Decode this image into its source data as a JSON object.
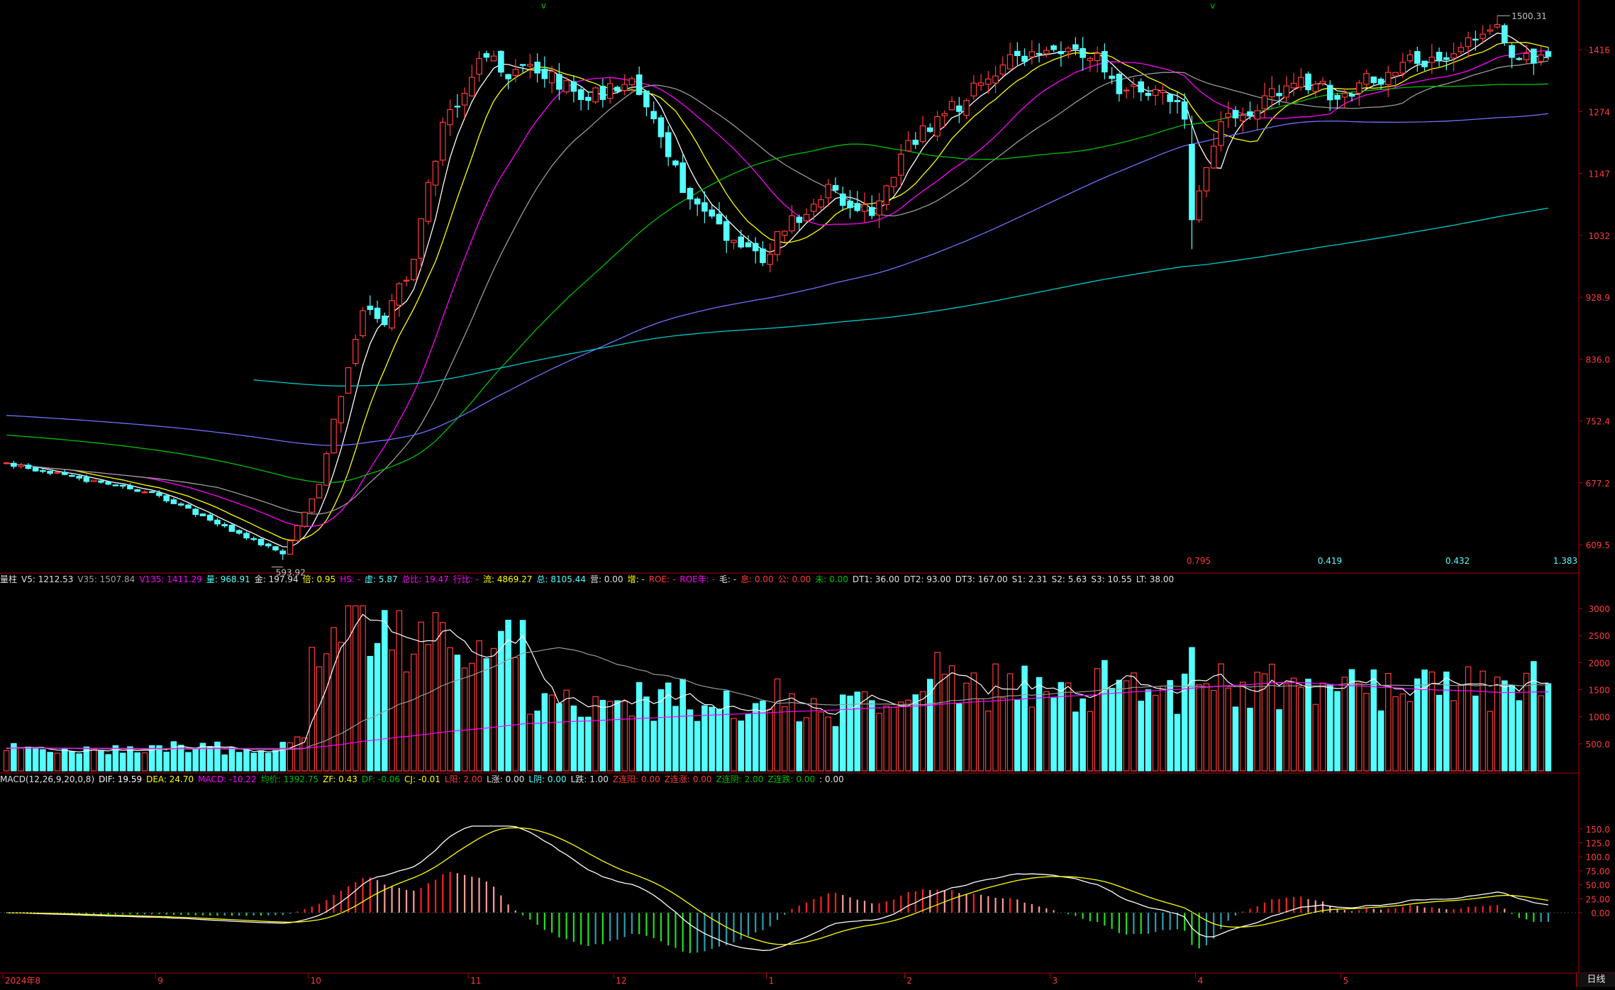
{
  "price_panel": {
    "y_ticks": [
      "1416",
      "1274",
      "1147",
      "1032",
      "928.9",
      "836.0",
      "752.4",
      "677.2",
      "609.5"
    ],
    "y_tick_values": [
      1416,
      1274,
      1147,
      1032,
      928.9,
      836.0,
      752.4,
      677.2,
      609.5
    ],
    "high_label": "1500.31",
    "low_label": "593.92",
    "bottom_values": [
      "0.795",
      "0.419",
      "0.432",
      "1.383"
    ],
    "colors": {
      "up": "#ff3b3b",
      "down": "#54ffff",
      "ma5": "#ffffff",
      "ma10": "#ffff00",
      "ma20": "#ff00ff",
      "ma30": "#9a9a9a",
      "ma60": "#00c000",
      "ma120": "#7070ff",
      "ma250": "#00c8c8"
    }
  },
  "volume_panel": {
    "header": [
      {
        "t": "量柱",
        "c": "#e0e0e0"
      },
      {
        "t": "V5: 1212.53",
        "c": "#e0e0e0"
      },
      {
        "t": "V35: 1507.84",
        "c": "#a0a0a0"
      },
      {
        "t": "V135: 1411.29",
        "c": "#ff00ff"
      },
      {
        "t": "量: 968.91",
        "c": "#54ffff"
      },
      {
        "t": "金: 197.94",
        "c": "#e0e0e0"
      },
      {
        "t": "倍: 0.95",
        "c": "#ffff00"
      },
      {
        "t": "HS: -",
        "c": "#ff00ff"
      },
      {
        "t": "虚: 5.87",
        "c": "#54ffff"
      },
      {
        "t": "总比: 19.47",
        "c": "#ff00ff"
      },
      {
        "t": "行比: -",
        "c": "#ff00ff"
      },
      {
        "t": "流: 4869.27",
        "c": "#ffff00"
      },
      {
        "t": "总: 8105.44",
        "c": "#54ffff"
      },
      {
        "t": "营: 0.00",
        "c": "#e0e0e0"
      },
      {
        "t": "增: -",
        "c": "#ffff00"
      },
      {
        "t": "ROE: -",
        "c": "#ff3b3b"
      },
      {
        "t": "ROE年: -",
        "c": "#ff00ff"
      },
      {
        "t": "毛: -",
        "c": "#e0e0e0"
      },
      {
        "t": "息: 0.00",
        "c": "#ff3b3b"
      },
      {
        "t": "公: 0.00",
        "c": "#ff3b3b"
      },
      {
        "t": "未: 0.00",
        "c": "#00c000"
      },
      {
        "t": "DT1: 36.00",
        "c": "#e0e0e0"
      },
      {
        "t": "DT2: 93.00",
        "c": "#e0e0e0"
      },
      {
        "t": "DT3: 167.00",
        "c": "#e0e0e0"
      },
      {
        "t": "S1: 2.31",
        "c": "#e0e0e0"
      },
      {
        "t": "S2: 5.63",
        "c": "#e0e0e0"
      },
      {
        "t": "S3: 10.55",
        "c": "#e0e0e0"
      },
      {
        "t": "LT: 38.00",
        "c": "#e0e0e0"
      }
    ],
    "y_ticks": [
      "3000",
      "2500",
      "2000",
      "1500",
      "1000",
      "500.0"
    ],
    "y_tick_values": [
      3000,
      2500,
      2000,
      1500,
      1000,
      500
    ]
  },
  "macd_panel": {
    "header": [
      {
        "t": "MACD(12,26,9,20,0,8)",
        "c": "#e0e0e0"
      },
      {
        "t": "DIF: 19.59",
        "c": "#ffffff"
      },
      {
        "t": "DEA: 24.70",
        "c": "#ffff00"
      },
      {
        "t": "MACD: -10.22",
        "c": "#ff00ff"
      },
      {
        "t": "均价: 1392.75",
        "c": "#00c000"
      },
      {
        "t": "ZF: 0.43",
        "c": "#ffff00"
      },
      {
        "t": "DF: -0.06",
        "c": "#00c000"
      },
      {
        "t": "CJ: -0.01",
        "c": "#ffff00"
      },
      {
        "t": "L阳: 2.00",
        "c": "#ff3b3b"
      },
      {
        "t": "L涨: 0.00",
        "c": "#e0e0e0"
      },
      {
        "t": "L阴: 0.00",
        "c": "#54ffff"
      },
      {
        "t": "L跌: 1.00",
        "c": "#e0e0e0"
      },
      {
        "t": "Z连阳: 0.00",
        "c": "#ff3b3b"
      },
      {
        "t": "Z连涨: 0.00",
        "c": "#ff3b3b"
      },
      {
        "t": "Z连阴: 2.00",
        "c": "#00c000"
      },
      {
        "t": "Z连跌: 0.00",
        "c": "#00c000"
      },
      {
        "t": ": 0.00",
        "c": "#e0e0e0"
      }
    ],
    "y_ticks": [
      "150.0",
      "125.0",
      "100.0",
      "75.00",
      "50.00",
      "25.00",
      "0.00"
    ],
    "y_tick_values": [
      150,
      125,
      100,
      75,
      50,
      25,
      0
    ]
  },
  "time_axis": {
    "labels": [
      "2024年8",
      "9",
      "10",
      "11",
      "12",
      "1",
      "2",
      "3",
      "4",
      "5"
    ],
    "label_positions": [
      0,
      21,
      42,
      64,
      84,
      105,
      124,
      144,
      164,
      184
    ]
  },
  "tab_label": "日线",
  "chart_data": {
    "type": "candlestick",
    "anchors": [
      [
        0,
        700
      ],
      [
        20,
        665
      ],
      [
        38,
        600
      ],
      [
        43,
        675
      ],
      [
        46,
        785
      ],
      [
        49,
        905
      ],
      [
        52,
        895
      ],
      [
        56,
        985
      ],
      [
        60,
        1245
      ],
      [
        63,
        1330
      ],
      [
        66,
        1405
      ],
      [
        69,
        1360
      ],
      [
        72,
        1370
      ],
      [
        77,
        1335
      ],
      [
        80,
        1310
      ],
      [
        84,
        1325
      ],
      [
        86,
        1330
      ],
      [
        90,
        1235
      ],
      [
        93,
        1120
      ],
      [
        97,
        1080
      ],
      [
        100,
        1010
      ],
      [
        104,
        995
      ],
      [
        106,
        1025
      ],
      [
        110,
        1080
      ],
      [
        113,
        1120
      ],
      [
        116,
        1090
      ],
      [
        119,
        1075
      ],
      [
        122,
        1140
      ],
      [
        124,
        1210
      ],
      [
        128,
        1255
      ],
      [
        131,
        1290
      ],
      [
        135,
        1360
      ],
      [
        138,
        1390
      ],
      [
        141,
        1405
      ],
      [
        144,
        1420
      ],
      [
        147,
        1410
      ],
      [
        150,
        1400
      ],
      [
        153,
        1330
      ],
      [
        157,
        1320
      ],
      [
        160,
        1300
      ],
      [
        162,
        1265
      ],
      [
        163,
        1055
      ],
      [
        166,
        1210
      ],
      [
        168,
        1265
      ],
      [
        172,
        1285
      ],
      [
        176,
        1330
      ],
      [
        180,
        1335
      ],
      [
        183,
        1305
      ],
      [
        186,
        1335
      ],
      [
        190,
        1360
      ],
      [
        193,
        1400
      ],
      [
        196,
        1390
      ],
      [
        199,
        1410
      ],
      [
        202,
        1455
      ],
      [
        205,
        1480
      ],
      [
        208,
        1385
      ],
      [
        210,
        1395
      ],
      [
        212,
        1410
      ]
    ],
    "ma_periods": [
      5,
      10,
      20,
      30,
      60,
      120,
      250
    ],
    "macd_params": [
      12,
      26,
      9
    ]
  }
}
